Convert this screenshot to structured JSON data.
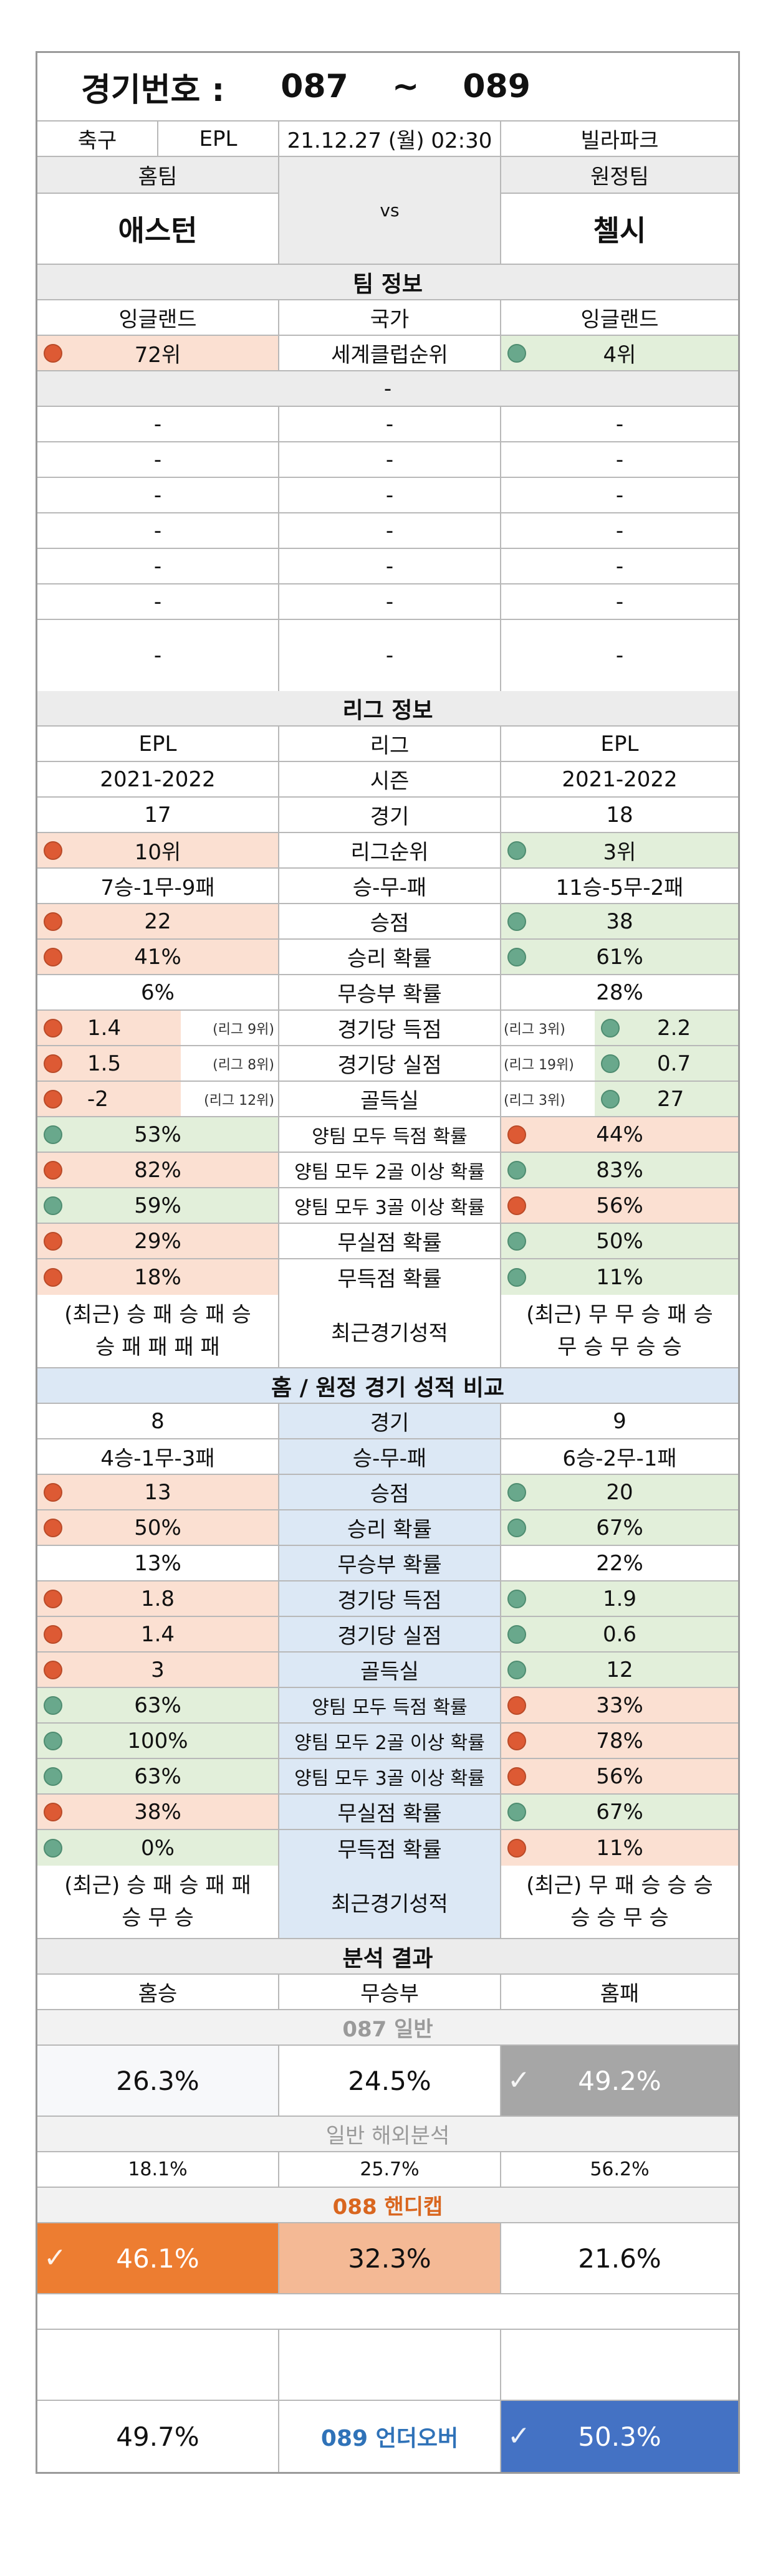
{
  "header": {
    "label": "경기번호 :",
    "from": "087",
    "sep": "~",
    "to": "089"
  },
  "match": {
    "sport": "축구",
    "league": "EPL",
    "datetime": "21.12.27 (월) 02:30",
    "venue": "빌라파크"
  },
  "teams": {
    "home_label": "홈팀",
    "away_label": "원정팀",
    "home": "애스턴",
    "vs": "vs",
    "away": "첼시"
  },
  "team_info": {
    "title": "팀 정보",
    "country": {
      "home": "잉글랜드",
      "label": "국가",
      "away": "잉글랜드"
    },
    "rank": {
      "home": "72위",
      "label": "세계클럽순위",
      "away": "4위"
    },
    "dash": "-"
  },
  "league_info": {
    "title": "리그 정보",
    "rows": [
      {
        "home": "EPL",
        "label": "리그",
        "away": "EPL"
      },
      {
        "home": "2021-2022",
        "label": "시즌",
        "away": "2021-2022"
      },
      {
        "home": "17",
        "label": "경기",
        "away": "18"
      },
      {
        "home": "10위",
        "label": "리그순위",
        "away": "3위"
      },
      {
        "home": "7승-1무-9패",
        "label": "승-무-패",
        "away": "11승-5무-2패"
      },
      {
        "home": "22",
        "label": "승점",
        "away": "38"
      },
      {
        "home": "41%",
        "label": "승리 확률",
        "away": "61%"
      },
      {
        "home": "6%",
        "label": "무승부 확률",
        "away": "28%"
      },
      {
        "home": "1.4",
        "home_rank": "(리그 9위)",
        "label": "경기당 득점",
        "away_rank": "(리그 3위)",
        "away": "2.2"
      },
      {
        "home": "1.5",
        "home_rank": "(리그 8위)",
        "label": "경기당 실점",
        "away_rank": "(리그 19위)",
        "away": "0.7"
      },
      {
        "home": "-2",
        "home_rank": "(리그 12위)",
        "label": "골득실",
        "away_rank": "(리그 3위)",
        "away": "27"
      },
      {
        "home": "53%",
        "label": "양팀 모두 득점 확률",
        "away": "44%"
      },
      {
        "home": "82%",
        "label": "양팀 모두 2골 이상 확률",
        "away": "83%"
      },
      {
        "home": "59%",
        "label": "양팀 모두 3골 이상 확률",
        "away": "56%"
      },
      {
        "home": "29%",
        "label": "무실점 확률",
        "away": "50%"
      },
      {
        "home": "18%",
        "label": "무득점 확률",
        "away": "11%"
      }
    ],
    "recent": {
      "home_l1": "(최근) 승 패 승 패 승",
      "home_l2": "승 패 패 패 패",
      "label": "최근경기성적",
      "away_l1": "(최근) 무 무 승 패 승",
      "away_l2": "무 승 무 승 승"
    }
  },
  "homeaway": {
    "title": "홈 / 원정 경기 성적 비교",
    "rows": [
      {
        "home": "8",
        "label": "경기",
        "away": "9"
      },
      {
        "home": "4승-1무-3패",
        "label": "승-무-패",
        "away": "6승-2무-1패"
      },
      {
        "home": "13",
        "label": "승점",
        "away": "20"
      },
      {
        "home": "50%",
        "label": "승리 확률",
        "away": "67%"
      },
      {
        "home": "13%",
        "label": "무승부 확률",
        "away": "22%"
      },
      {
        "home": "1.8",
        "label": "경기당 득점",
        "away": "1.9"
      },
      {
        "home": "1.4",
        "label": "경기당 실점",
        "away": "0.6"
      },
      {
        "home": "3",
        "label": "골득실",
        "away": "12"
      },
      {
        "home": "63%",
        "label": "양팀 모두 득점 확률",
        "away": "33%"
      },
      {
        "home": "100%",
        "label": "양팀 모두 2골 이상 확률",
        "away": "78%"
      },
      {
        "home": "63%",
        "label": "양팀 모두 3골 이상 확률",
        "away": "56%"
      },
      {
        "home": "38%",
        "label": "무실점 확률",
        "away": "67%"
      },
      {
        "home": "0%",
        "label": "무득점 확률",
        "away": "11%"
      }
    ],
    "recent": {
      "home_l1": "(최근) 승 패 승 패 패",
      "home_l2": "승 무 승",
      "label": "최근경기성적",
      "away_l1": "(최근) 무 패 승 승 승",
      "away_l2": "승 승 무 승"
    }
  },
  "analysis": {
    "title": "분석 결과",
    "cols": {
      "win": "홈승",
      "draw": "무승부",
      "lose": "홈패"
    },
    "general": {
      "title": "087 일반",
      "win": "26.3%",
      "draw": "24.5%",
      "lose": "49.2%"
    },
    "overseas": {
      "title": "일반 해외분석",
      "win": "18.1%",
      "draw": "25.7%",
      "lose": "56.2%"
    },
    "handicap": {
      "title": "088 핸디캡",
      "win": "46.1%",
      "draw": "32.3%",
      "lose": "21.6%"
    },
    "underover": {
      "title": "089 언더오버",
      "under": "49.7%",
      "over": "50.3%"
    }
  },
  "colors": {
    "peach": "#fbe0d2",
    "green": "#e2efda",
    "orange": "#ed7d31",
    "blue": "#4472c4",
    "grey": "#a6a6a6",
    "red_dot": "#dd5a34",
    "green_dot": "#69a88c"
  }
}
